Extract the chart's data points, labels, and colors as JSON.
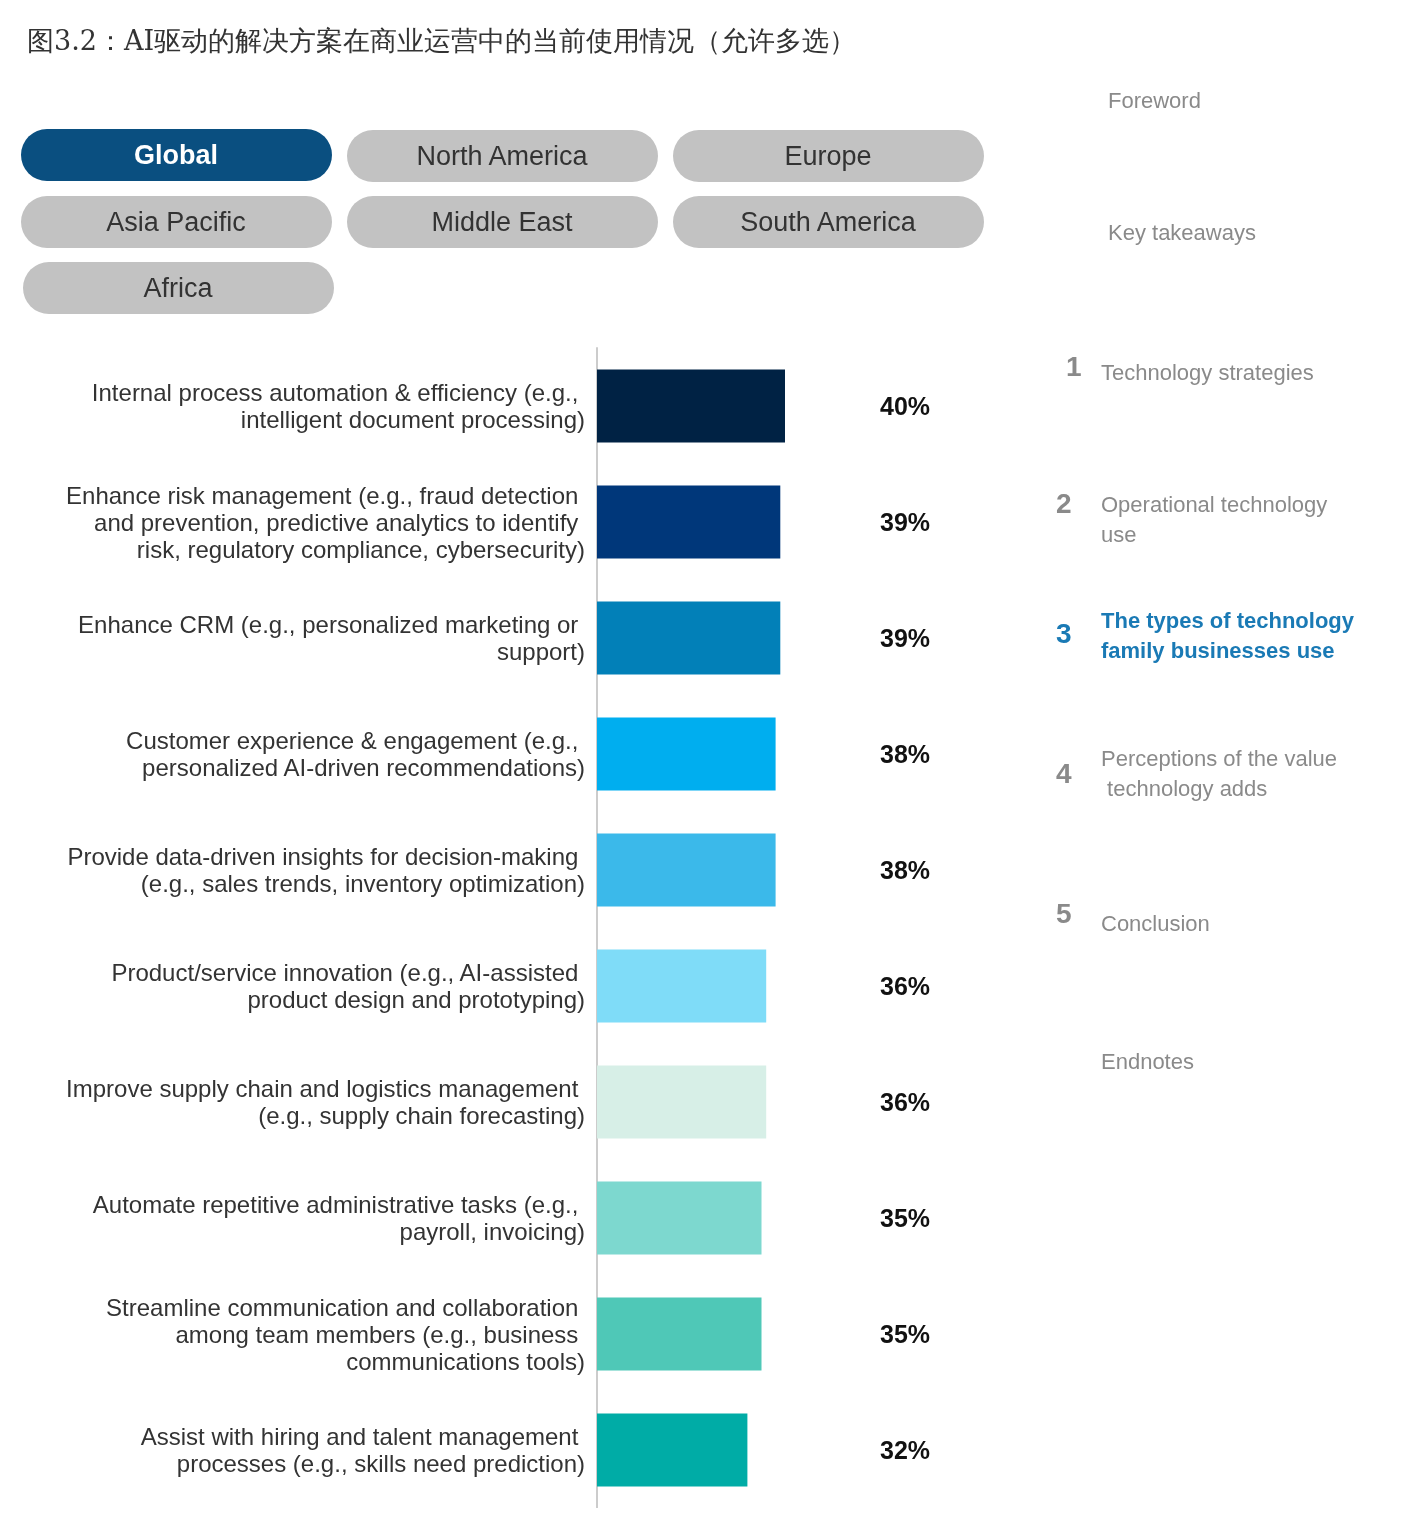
{
  "chart_data": {
    "type": "bar",
    "orientation": "horizontal",
    "title": "图3.2：AI驱动的解决方案在商业运营中的当前使用情况（允许多选）",
    "categories": [
      "Internal process automation & efficiency (e.g., intelligent document processing)",
      "Enhance risk management (e.g., fraud detection and prevention, predictive analytics to identify risk, regulatory compliance, cybersecurity)",
      "Enhance CRM (e.g., personalized marketing or support)",
      "Customer experience & engagement (e.g., personalized AI-driven recommendations)",
      "Provide data-driven insights for decision-making (e.g., sales trends, inventory optimization)",
      "Product/service innovation (e.g., AI-assisted product design and prototyping)",
      "Improve supply chain and logistics management (e.g., supply chain forecasting)",
      "Automate repetitive administrative tasks (e.g., payroll, invoicing)",
      "Streamline communication and collaboration among team members (e.g., business communications tools)",
      "Assist with hiring and talent management processes (e.g., skills need prediction)"
    ],
    "values": [
      40,
      39,
      39,
      38,
      38,
      36,
      36,
      35,
      35,
      32
    ],
    "colors": [
      "#002244",
      "#00377a",
      "#0280b8",
      "#00aeef",
      "#3bb9ea",
      "#7fdcf8",
      "#d7efe7",
      "#7dd8cf",
      "#4fc8b7",
      "#00aca6"
    ],
    "value_labels": [
      "40%",
      "39%",
      "39%",
      "38%",
      "38%",
      "36%",
      "36%",
      "35%",
      "35%",
      "32%"
    ],
    "annotations": [
      "Global",
      "North America",
      "Europe",
      "Asia Pacific",
      "Middle East",
      "South America",
      "Africa",
      "Foreword",
      "Key takeaways",
      "1",
      "Technology strategies",
      "2",
      "Operational technology use",
      "3",
      "The types of technology family businesses use",
      "4",
      "Perceptions of the value technology adds",
      "5",
      "Conclusion",
      "Endnotes"
    ]
  }
}
